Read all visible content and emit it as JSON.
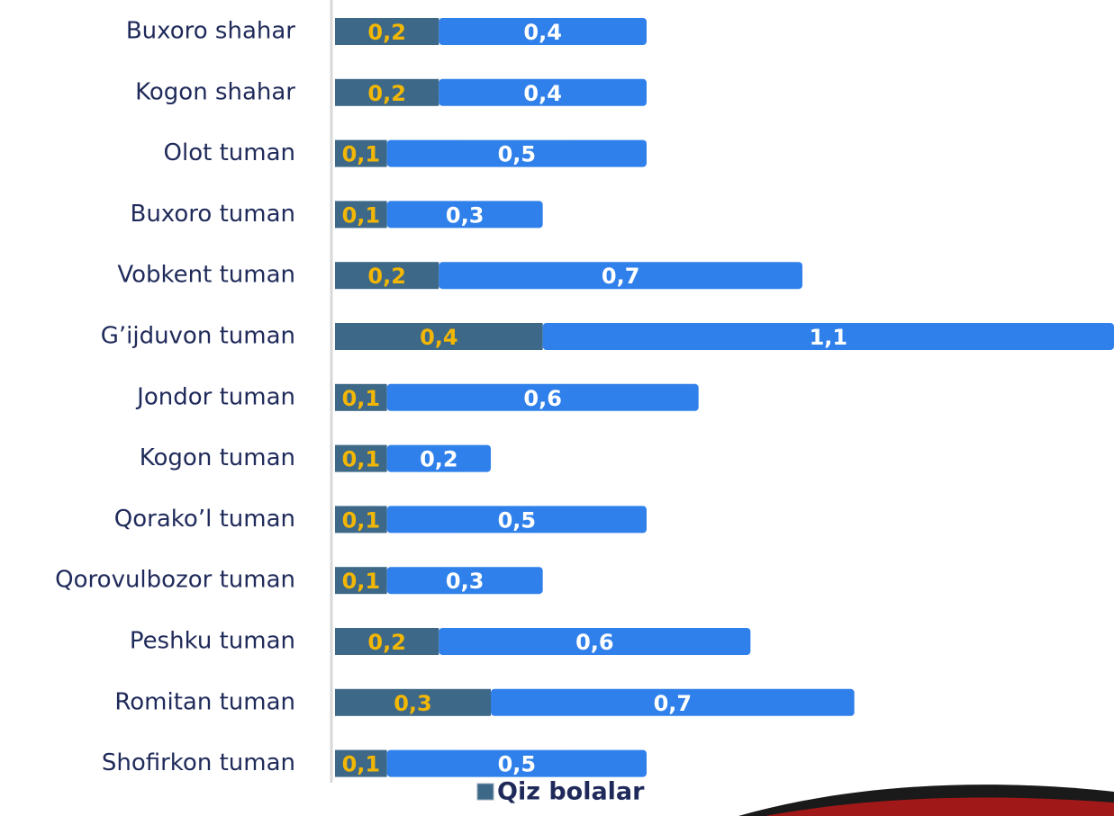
{
  "chart_data": {
    "type": "bar",
    "orientation": "horizontal",
    "stacked": true,
    "categories": [
      "Buxoro shahar",
      "Kogon shahar",
      "Olot tuman",
      "Buxoro tuman",
      "Vobkent tuman",
      "G’ijduvon tuman",
      "Jondor tuman",
      "Kogon tuman",
      "Qorako’l tuman",
      "Qorovulbozor tuman",
      "Peshku tuman",
      "Romitan tuman",
      "Shofirkon tuman"
    ],
    "series": [
      {
        "name": "Qiz bolalar",
        "color": "#3d6888",
        "label_color": "#f2b705",
        "values": [
          0.2,
          0.2,
          0.1,
          0.1,
          0.2,
          0.4,
          0.1,
          0.1,
          0.1,
          0.1,
          0.2,
          0.3,
          0.1
        ],
        "value_labels": [
          "0,2",
          "0,2",
          "0,1",
          "0,1",
          "0,2",
          "0,4",
          "0,1",
          "0,1",
          "0,1",
          "0,1",
          "0,2",
          "0,3",
          "0,1"
        ]
      },
      {
        "color": "#2f80ea",
        "label_color": "#ffffff",
        "values": [
          0.4,
          0.4,
          0.5,
          0.3,
          0.7,
          1.1,
          0.6,
          0.2,
          0.5,
          0.3,
          0.6,
          0.7,
          0.5
        ],
        "value_labels": [
          "0,4",
          "0,4",
          "0,5",
          "0,3",
          "0,7",
          "1,1",
          "0,6",
          "0,2",
          "0,5",
          "0,3",
          "0,6",
          "0,7",
          "0,5"
        ]
      }
    ],
    "xlim": [
      0,
      1.5
    ]
  }
}
